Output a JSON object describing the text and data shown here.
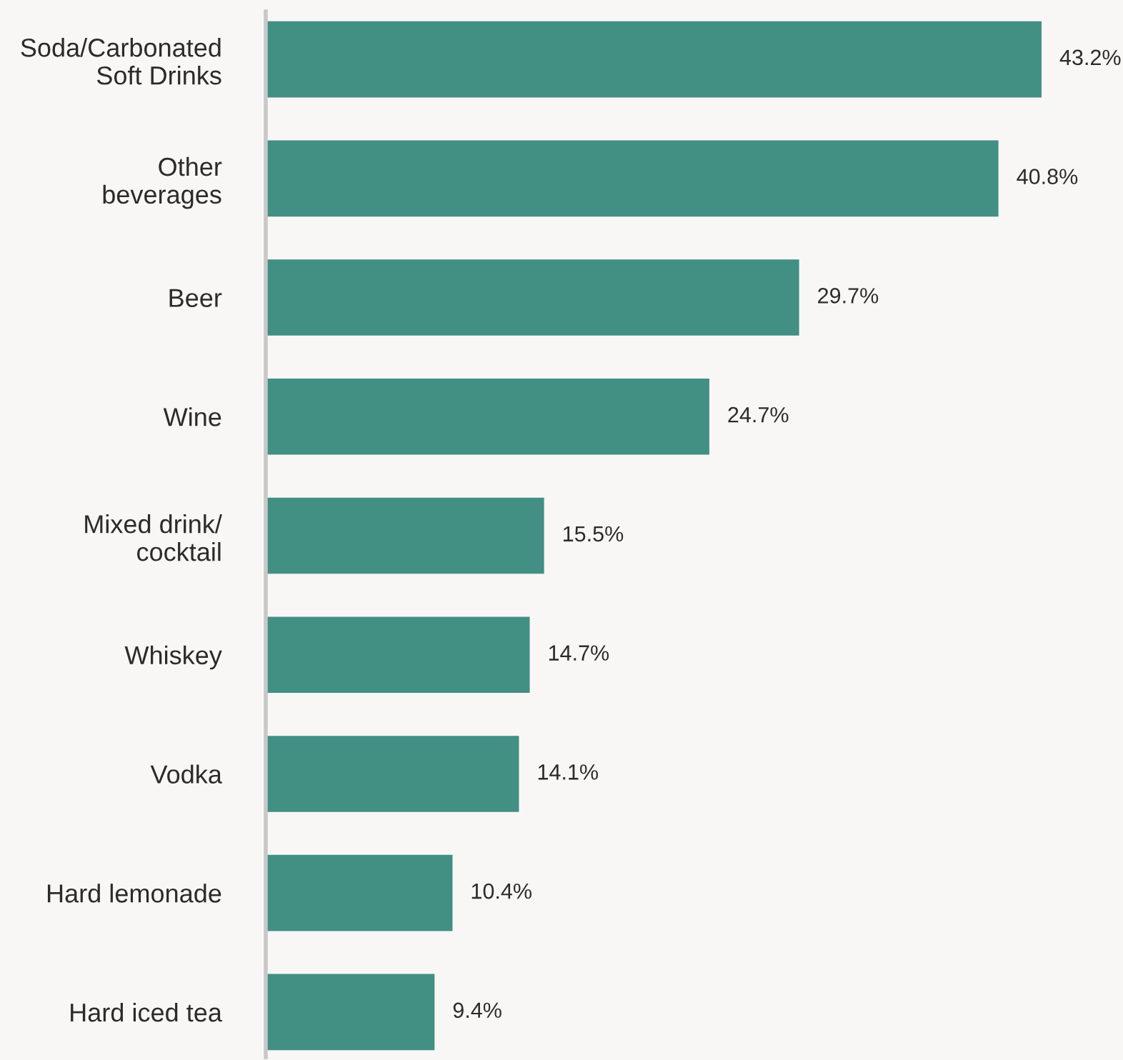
{
  "chart_data": {
    "type": "bar",
    "orientation": "horizontal",
    "categories": [
      "Soda/Carbonated\nSoft Drinks",
      "Other\nbeverages",
      "Beer",
      "Wine",
      "Mixed drink/\ncocktail",
      "Whiskey",
      "Vodka",
      "Hard lemonade",
      "Hard iced tea"
    ],
    "values": [
      43.2,
      40.8,
      29.7,
      24.7,
      15.5,
      14.7,
      14.1,
      10.4,
      9.4
    ],
    "value_labels": [
      "43.2%",
      "40.8%",
      "29.7%",
      "24.7%",
      "15.5%",
      "14.7%",
      "14.1%",
      "10.4%",
      "9.4%"
    ],
    "color": "#428f84",
    "grid": false,
    "legend": false,
    "tick_labels": "y"
  }
}
